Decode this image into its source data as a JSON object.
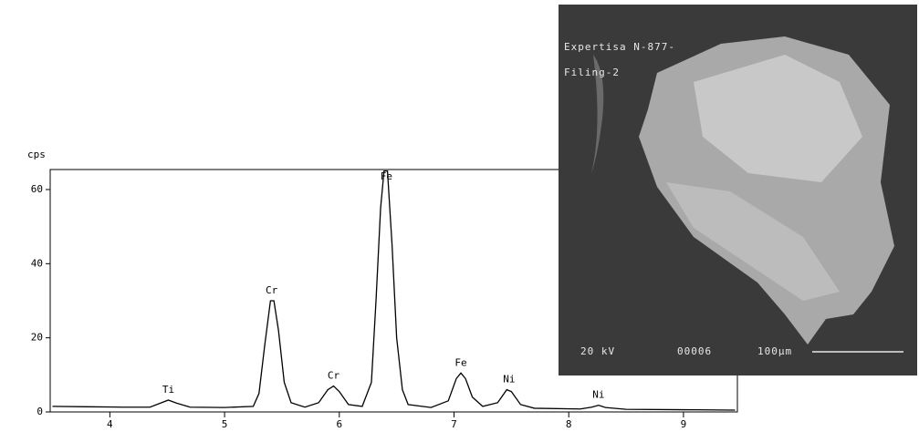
{
  "chart_data": {
    "type": "line",
    "y_label": "cps",
    "x": [
      3.5,
      3.8,
      4.1,
      4.35,
      4.45,
      4.51,
      4.58,
      4.7,
      5.0,
      5.25,
      5.3,
      5.35,
      5.4,
      5.43,
      5.47,
      5.52,
      5.58,
      5.7,
      5.82,
      5.9,
      5.95,
      6.0,
      6.08,
      6.2,
      6.28,
      6.32,
      6.36,
      6.39,
      6.42,
      6.46,
      6.5,
      6.55,
      6.6,
      6.8,
      6.95,
      7.02,
      7.06,
      7.1,
      7.16,
      7.25,
      7.38,
      7.46,
      7.5,
      7.58,
      7.7,
      8.1,
      8.2,
      8.26,
      8.32,
      8.5,
      9.0,
      9.45
    ],
    "series": [
      {
        "color": "#000000",
        "values": [
          1.5,
          1.4,
          1.3,
          1.3,
          2.5,
          3.2,
          2.4,
          1.3,
          1.2,
          1.5,
          5,
          18,
          30,
          30,
          22,
          8,
          2.5,
          1.3,
          2.5,
          6,
          7,
          5.5,
          2,
          1.5,
          8,
          30,
          55,
          65,
          65,
          45,
          20,
          6,
          2,
          1.2,
          3,
          9,
          10.5,
          9,
          4,
          1.5,
          2.5,
          6,
          5.5,
          2,
          1,
          0.8,
          1.3,
          1.8,
          1.2,
          0.7,
          0.6,
          0.5
        ]
      }
    ],
    "xlim": [
      3.48,
      9.47
    ],
    "ylim": [
      0,
      65.4
    ],
    "xticks": [
      4,
      5,
      6,
      7,
      8,
      9
    ],
    "yticks": [
      0,
      20,
      40,
      60
    ],
    "annotations": [
      {
        "text": "Ti",
        "x": 4.51,
        "y": 3.2
      },
      {
        "text": "Cr",
        "x": 5.41,
        "y": 30
      },
      {
        "text": "Cr",
        "x": 5.95,
        "y": 7
      },
      {
        "text": "Fe",
        "x": 6.41,
        "y": 65
      },
      {
        "text": "Fe",
        "x": 7.06,
        "y": 10.5
      },
      {
        "text": "Ni",
        "x": 7.48,
        "y": 6
      },
      {
        "text": "Ni",
        "x": 8.26,
        "y": 1.8
      }
    ]
  },
  "image": {
    "caption_1": "Expertisa N-877-",
    "caption_2": "Filing-2",
    "voltage": "20 kV",
    "number": "00006",
    "scale": "100µm"
  }
}
